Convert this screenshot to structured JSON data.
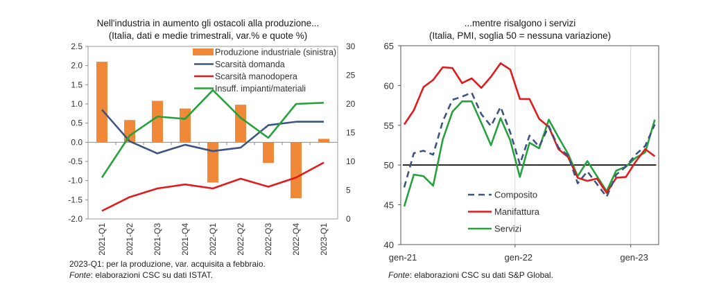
{
  "charts": {
    "left": {
      "title": "Nell'industria in aumento gli ostacoli alla produzione...",
      "subtitle": "(Italia, dati e medie trimestrali, var.% e quote %)",
      "note": "2023-Q1: per la produzione, var. acquisita a febbraio.",
      "source_label": "Fonte",
      "source_text": ": elaborazioni CSC su dati ISTAT."
    },
    "right": {
      "title": "...mentre risalgono i servizi",
      "subtitle": "(Italia, PMI, soglia 50 = nessuna variazione)",
      "source_label": "Fonte",
      "source_text": ": elaborazioni CSC su dati S&P Global."
    }
  },
  "chart_data": [
    {
      "type": "bar",
      "title": "Nell'industria in aumento gli ostacoli alla produzione...",
      "subtitle": "(Italia, dati e medie trimestrali, var.% e quote %)",
      "categories": [
        "2021-Q1",
        "2021-Q2",
        "2021-Q3",
        "2021-Q4",
        "2022-Q1",
        "2022-Q2",
        "2022-Q3",
        "2022-Q4",
        "2023-Q1"
      ],
      "ylim": [
        -2.0,
        2.5
      ],
      "yticks": [
        "2.5",
        "2.0",
        "1.5",
        "1.0",
        "0.5",
        "0.0",
        "-0.5",
        "-1.0",
        "-1.5",
        "-2.0"
      ],
      "y2lim": [
        0,
        30
      ],
      "y2ticks": [
        "30",
        "25",
        "20",
        "15",
        "10",
        "5",
        "0"
      ],
      "legend_position": "top-right",
      "series": [
        {
          "name": "Produzione industriale (sinistra)",
          "type": "bar",
          "axis": "left",
          "color": "#F0883A",
          "values": [
            2.1,
            0.58,
            1.08,
            0.88,
            -1.05,
            0.98,
            -0.54,
            -1.46,
            0.09
          ]
        },
        {
          "name": "Scarsità domanda",
          "type": "line",
          "axis": "right",
          "color": "#3B5482",
          "values": [
            19.0,
            13.5,
            11.4,
            12.9,
            11.8,
            12.4,
            16.3,
            16.9,
            16.9
          ]
        },
        {
          "name": "Scarsità manodopera",
          "type": "line",
          "axis": "right",
          "color": "#E3191C",
          "values": [
            1.4,
            3.8,
            5.3,
            6.0,
            5.3,
            7.0,
            5.6,
            7.2,
            9.8
          ]
        },
        {
          "name": "Insuff. impianti/materiali",
          "type": "line",
          "axis": "right",
          "color": "#26A23C",
          "values": [
            7.2,
            14.5,
            17.8,
            17.4,
            22.4,
            17.6,
            14.1,
            20.0,
            20.2
          ]
        }
      ]
    },
    {
      "type": "line",
      "title": "...mentre risalgono i servizi",
      "subtitle": "(Italia, PMI, soglia 50 = nessuna variazione)",
      "x_labels": [
        "gen-21",
        "gen-22",
        "gen-23"
      ],
      "x": [
        "gen-21",
        "feb-21",
        "mar-21",
        "apr-21",
        "mag-21",
        "giu-21",
        "lug-21",
        "ago-21",
        "set-21",
        "ott-21",
        "nov-21",
        "dic-21",
        "gen-22",
        "feb-22",
        "mar-22",
        "apr-22",
        "mag-22",
        "giu-22",
        "lug-22",
        "ago-22",
        "set-22",
        "ott-22",
        "nov-22",
        "dic-22",
        "gen-23",
        "feb-23",
        "mar-23"
      ],
      "ylim": [
        40,
        65
      ],
      "yticks": [
        "65",
        "60",
        "55",
        "50",
        "45",
        "40"
      ],
      "threshold": 50,
      "legend_position": "bottom-left",
      "series": [
        {
          "name": "Composito",
          "style": "dashed",
          "color": "#3B5482",
          "values": [
            47.2,
            51.5,
            51.8,
            51.3,
            55.5,
            58.2,
            58.6,
            59.1,
            56.4,
            54.9,
            57.3,
            54.1,
            50.1,
            53.7,
            52.3,
            54.9,
            52.2,
            51.2,
            47.7,
            49.2,
            47.6,
            46.0,
            48.8,
            49.8,
            51.3,
            52.4,
            55.1
          ]
        },
        {
          "name": "Manifattura",
          "style": "solid",
          "color": "#E3191C",
          "values": [
            55.1,
            56.9,
            59.8,
            60.7,
            62.3,
            62.2,
            60.3,
            60.9,
            59.7,
            61.1,
            62.8,
            62.0,
            58.3,
            58.3,
            55.8,
            54.8,
            52.0,
            51.0,
            48.4,
            48.0,
            48.3,
            46.5,
            48.4,
            48.5,
            50.4,
            52.0,
            51.1
          ]
        },
        {
          "name": "Servizi",
          "style": "solid",
          "color": "#26A23C",
          "values": [
            44.8,
            48.8,
            48.6,
            47.4,
            53.2,
            56.7,
            58.0,
            58.0,
            55.3,
            52.5,
            55.9,
            53.1,
            48.5,
            52.8,
            52.1,
            55.7,
            53.5,
            51.4,
            48.6,
            50.5,
            48.6,
            46.7,
            49.3,
            49.8,
            50.9,
            51.6,
            55.7
          ]
        }
      ]
    }
  ]
}
